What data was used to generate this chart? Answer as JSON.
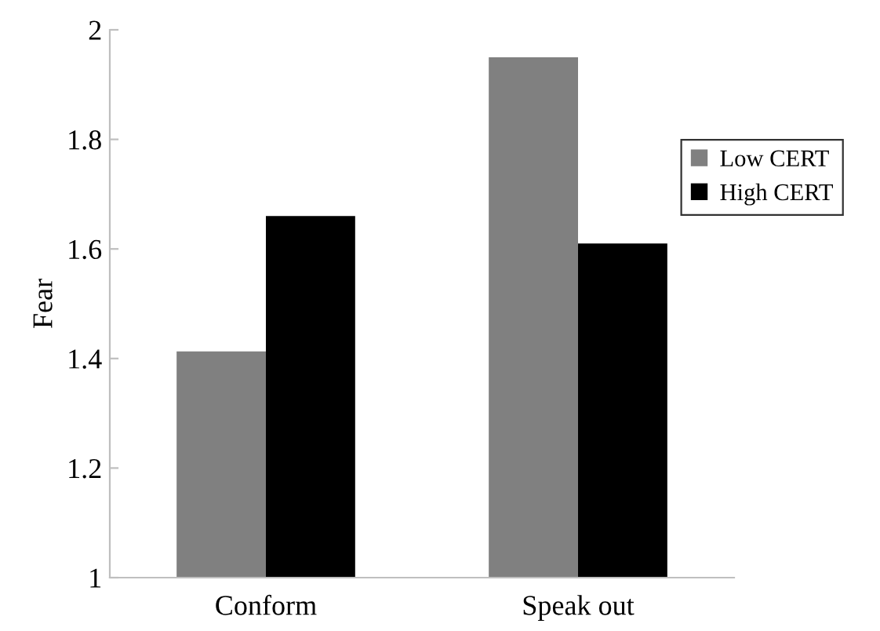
{
  "chart_data": {
    "type": "bar",
    "ylabel": "Fear",
    "categories": [
      "Conform",
      "Speak out"
    ],
    "series": [
      {
        "name": "Low CERT",
        "color": "#808080",
        "values": [
          1.413,
          1.95
        ]
      },
      {
        "name": "High CERT",
        "color": "#000000",
        "values": [
          1.66,
          1.61
        ]
      }
    ],
    "ylim": [
      1,
      2
    ],
    "yticks": [
      1,
      1.2,
      1.4,
      1.6,
      1.8,
      2
    ],
    "legend": "right",
    "grid": false
  }
}
